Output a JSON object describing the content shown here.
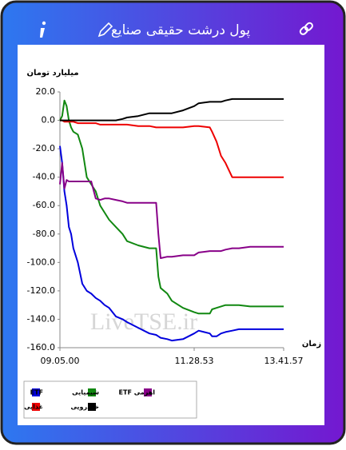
{
  "header": {
    "title": "پول درشت حقیقی صنایع"
  },
  "chart_data": {
    "type": "line",
    "y_label": "میلیارد تومان",
    "x_label": "زمان",
    "watermark": "LiveTSE.ir",
    "x": [
      0,
      1,
      2,
      3,
      4,
      5,
      6,
      8,
      10,
      12,
      14,
      16,
      18,
      20,
      22,
      25,
      28,
      30,
      35,
      40,
      43,
      44,
      45,
      48,
      50,
      55,
      60,
      62,
      67,
      68,
      70,
      72,
      74,
      77,
      80,
      85,
      90,
      100
    ],
    "xlim": [
      0,
      100
    ],
    "xticks": [
      {
        "value": 0,
        "label": "09.05.00"
      },
      {
        "value": 60,
        "label": "11.28.53"
      },
      {
        "value": 100,
        "label": "13.41.57"
      }
    ],
    "ylim": [
      -160,
      20
    ],
    "yticks": [
      {
        "value": 20,
        "label": "20.0"
      },
      {
        "value": 0,
        "label": "0.0"
      },
      {
        "value": -20,
        "label": "-20.0"
      },
      {
        "value": -40,
        "label": "-40.0"
      },
      {
        "value": -60,
        "label": "-60.0"
      },
      {
        "value": -80,
        "label": "-80.0"
      },
      {
        "value": -100,
        "label": "-100.0"
      },
      {
        "value": -120,
        "label": "-120.0"
      },
      {
        "value": -140,
        "label": "-140.0"
      },
      {
        "value": -160,
        "label": "-160.0"
      }
    ],
    "zero_line": true,
    "series": [
      {
        "name": "ETF",
        "color": "#0000dd",
        "values": [
          -18,
          -30,
          -50,
          -60,
          -75,
          -80,
          -90,
          -100,
          -115,
          -120,
          -122,
          -125,
          -127,
          -130,
          -132,
          -138,
          -140,
          -142,
          -146,
          -150,
          -151,
          -152,
          -153,
          -154,
          -155,
          -154,
          -150,
          -148,
          -150,
          -152,
          -152,
          -150,
          -149,
          -148,
          -147,
          -147,
          -147,
          -147
        ]
      },
      {
        "name": "شیمیایی",
        "color": "#118811",
        "values": [
          0,
          3,
          14,
          10,
          0,
          -5,
          -8,
          -10,
          -20,
          -40,
          -45,
          -50,
          -60,
          -65,
          -70,
          -75,
          -80,
          -85,
          -88,
          -90,
          -90,
          -110,
          -118,
          -122,
          -127,
          -132,
          -135,
          -136,
          -136,
          -133,
          -132,
          -131,
          -130,
          -130,
          -130,
          -131,
          -131,
          -131
        ]
      },
      {
        "name": "ETF اهرمی",
        "color": "#880088",
        "values": [
          -45,
          -30,
          -48,
          -42,
          -43,
          -43,
          -43,
          -43,
          -43,
          -43,
          -43,
          -55,
          -56,
          -55,
          -55,
          -56,
          -57,
          -58,
          -58,
          -58,
          -58,
          -80,
          -97,
          -96,
          -96,
          -95,
          -95,
          -93,
          -92,
          -92,
          -92,
          -92,
          -91,
          -90,
          -90,
          -89,
          -89,
          -89
        ]
      },
      {
        "name": "غذایی",
        "color": "#ee0000",
        "values": [
          0,
          0,
          -1,
          -1,
          -1,
          -1,
          -1,
          -2,
          -2,
          -2,
          -2,
          -2,
          -3,
          -3,
          -3,
          -3,
          -3,
          -3,
          -4,
          -4,
          -5,
          -5,
          -5,
          -5,
          -5,
          -5,
          -4,
          -4,
          -5,
          -8,
          -15,
          -25,
          -30,
          -40,
          -40,
          -40,
          -40,
          -40
        ]
      },
      {
        "name": "خودرویی",
        "color": "#000000",
        "values": [
          0,
          0,
          0,
          0,
          0,
          0,
          0,
          0,
          0,
          0,
          0,
          0,
          0,
          0,
          0,
          0,
          1,
          2,
          3,
          5,
          5,
          5,
          5,
          5,
          5,
          7,
          10,
          12,
          13,
          13,
          13,
          13,
          14,
          15,
          15,
          15,
          15,
          15
        ]
      }
    ]
  }
}
